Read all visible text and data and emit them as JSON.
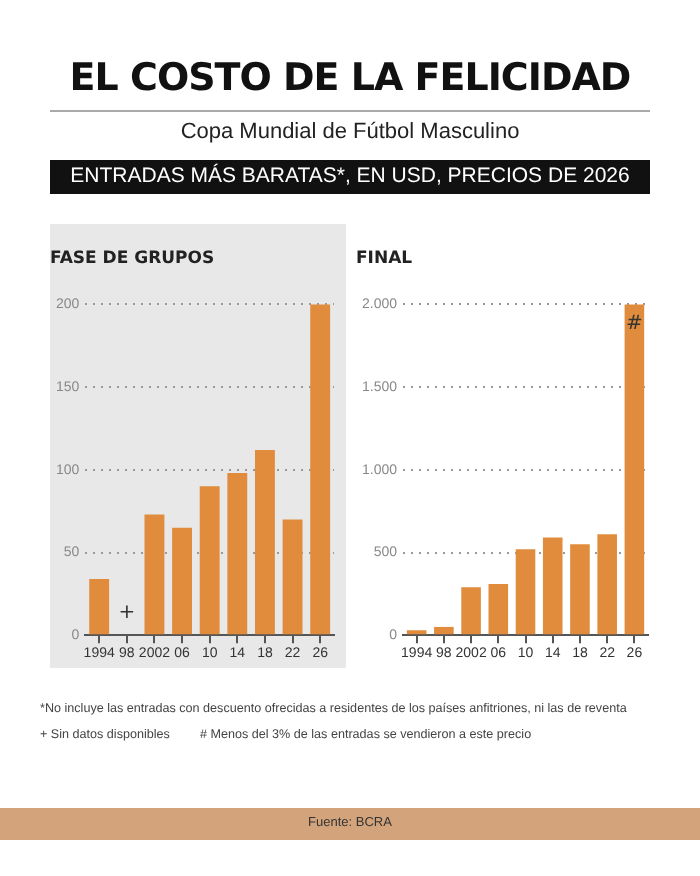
{
  "chart_data": [
    {
      "type": "bar",
      "title": "FASE DE GRUPOS",
      "categories": [
        "1994",
        "98",
        "2002",
        "06",
        "10",
        "14",
        "18",
        "22",
        "26"
      ],
      "values": [
        34,
        null,
        73,
        65,
        90,
        98,
        112,
        70,
        200
      ],
      "color": "#e08c3c",
      "ylim": [
        0,
        200
      ],
      "yticks": [
        0,
        50,
        100,
        150,
        200
      ],
      "grid": "y",
      "annotations": [
        "EL COSTO DE LA FELICIDAD",
        "Copa Mundial de Fútbol Masculino",
        "ENTRADAS MÁS BARATAS*, EN USD, PRECIOS DE 2026",
        "+"
      ]
    },
    {
      "type": "bar",
      "title": "FINAL",
      "categories": [
        "1994",
        "98",
        "2002",
        "06",
        "10",
        "14",
        "18",
        "22",
        "26"
      ],
      "values": [
        30,
        50,
        290,
        310,
        520,
        590,
        550,
        610,
        2000
      ],
      "color": "#e08c3c",
      "ylim": [
        0,
        2000
      ],
      "yticks": [
        0,
        {
          "value": 500,
          "label": "500"
        },
        {
          "value": 1000,
          "label": "1.000"
        },
        {
          "value": 1500,
          "label": "1.500"
        },
        {
          "value": 2000,
          "label": "2.000"
        }
      ],
      "grid": "y",
      "annotations": [
        {
          "text": "#",
          "x": "26",
          "y": 1880
        },
        "*No incluye las entradas con descuento ofrecidas a residentes de los países anfitriones, ni las de reventa",
        "+ Sin datos disponibles",
        "# Menos del 3% de las entradas se vendieron a este precio",
        "Fuente: BCRA"
      ]
    }
  ]
}
